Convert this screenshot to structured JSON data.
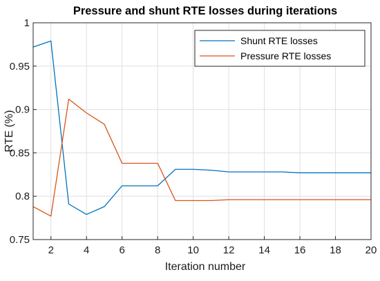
{
  "chart_data": {
    "type": "line",
    "title": "Pressure and shunt RTE losses during iterations",
    "xlabel": "Iteration number",
    "ylabel": "RTE (%)",
    "xlim": [
      1,
      20
    ],
    "ylim": [
      0.75,
      1.0
    ],
    "xticks": [
      2,
      4,
      6,
      8,
      10,
      12,
      14,
      16,
      18,
      20
    ],
    "yticks": [
      0.75,
      0.8,
      0.85,
      0.9,
      0.95,
      1
    ],
    "ytick_labels": [
      "0.75",
      "0.8",
      "0.85",
      "0.9",
      "0.95",
      "1"
    ],
    "grid": true,
    "legend_position": "top-right",
    "x": [
      1,
      2,
      3,
      4,
      5,
      6,
      7,
      8,
      9,
      10,
      11,
      12,
      13,
      14,
      15,
      16,
      17,
      18,
      19,
      20
    ],
    "series": [
      {
        "name": "Shunt RTE losses",
        "color": "#0072BD",
        "values": [
          0.972,
          0.979,
          0.791,
          0.779,
          0.788,
          0.812,
          0.812,
          0.812,
          0.831,
          0.831,
          0.83,
          0.828,
          0.828,
          0.828,
          0.828,
          0.827,
          0.827,
          0.827,
          0.827,
          0.827
        ]
      },
      {
        "name": "Pressure RTE losses",
        "color": "#D95319",
        "values": [
          0.788,
          0.777,
          0.912,
          0.896,
          0.883,
          0.838,
          0.838,
          0.838,
          0.795,
          0.795,
          0.795,
          0.796,
          0.796,
          0.796,
          0.796,
          0.796,
          0.796,
          0.796,
          0.796,
          0.796
        ]
      }
    ]
  }
}
